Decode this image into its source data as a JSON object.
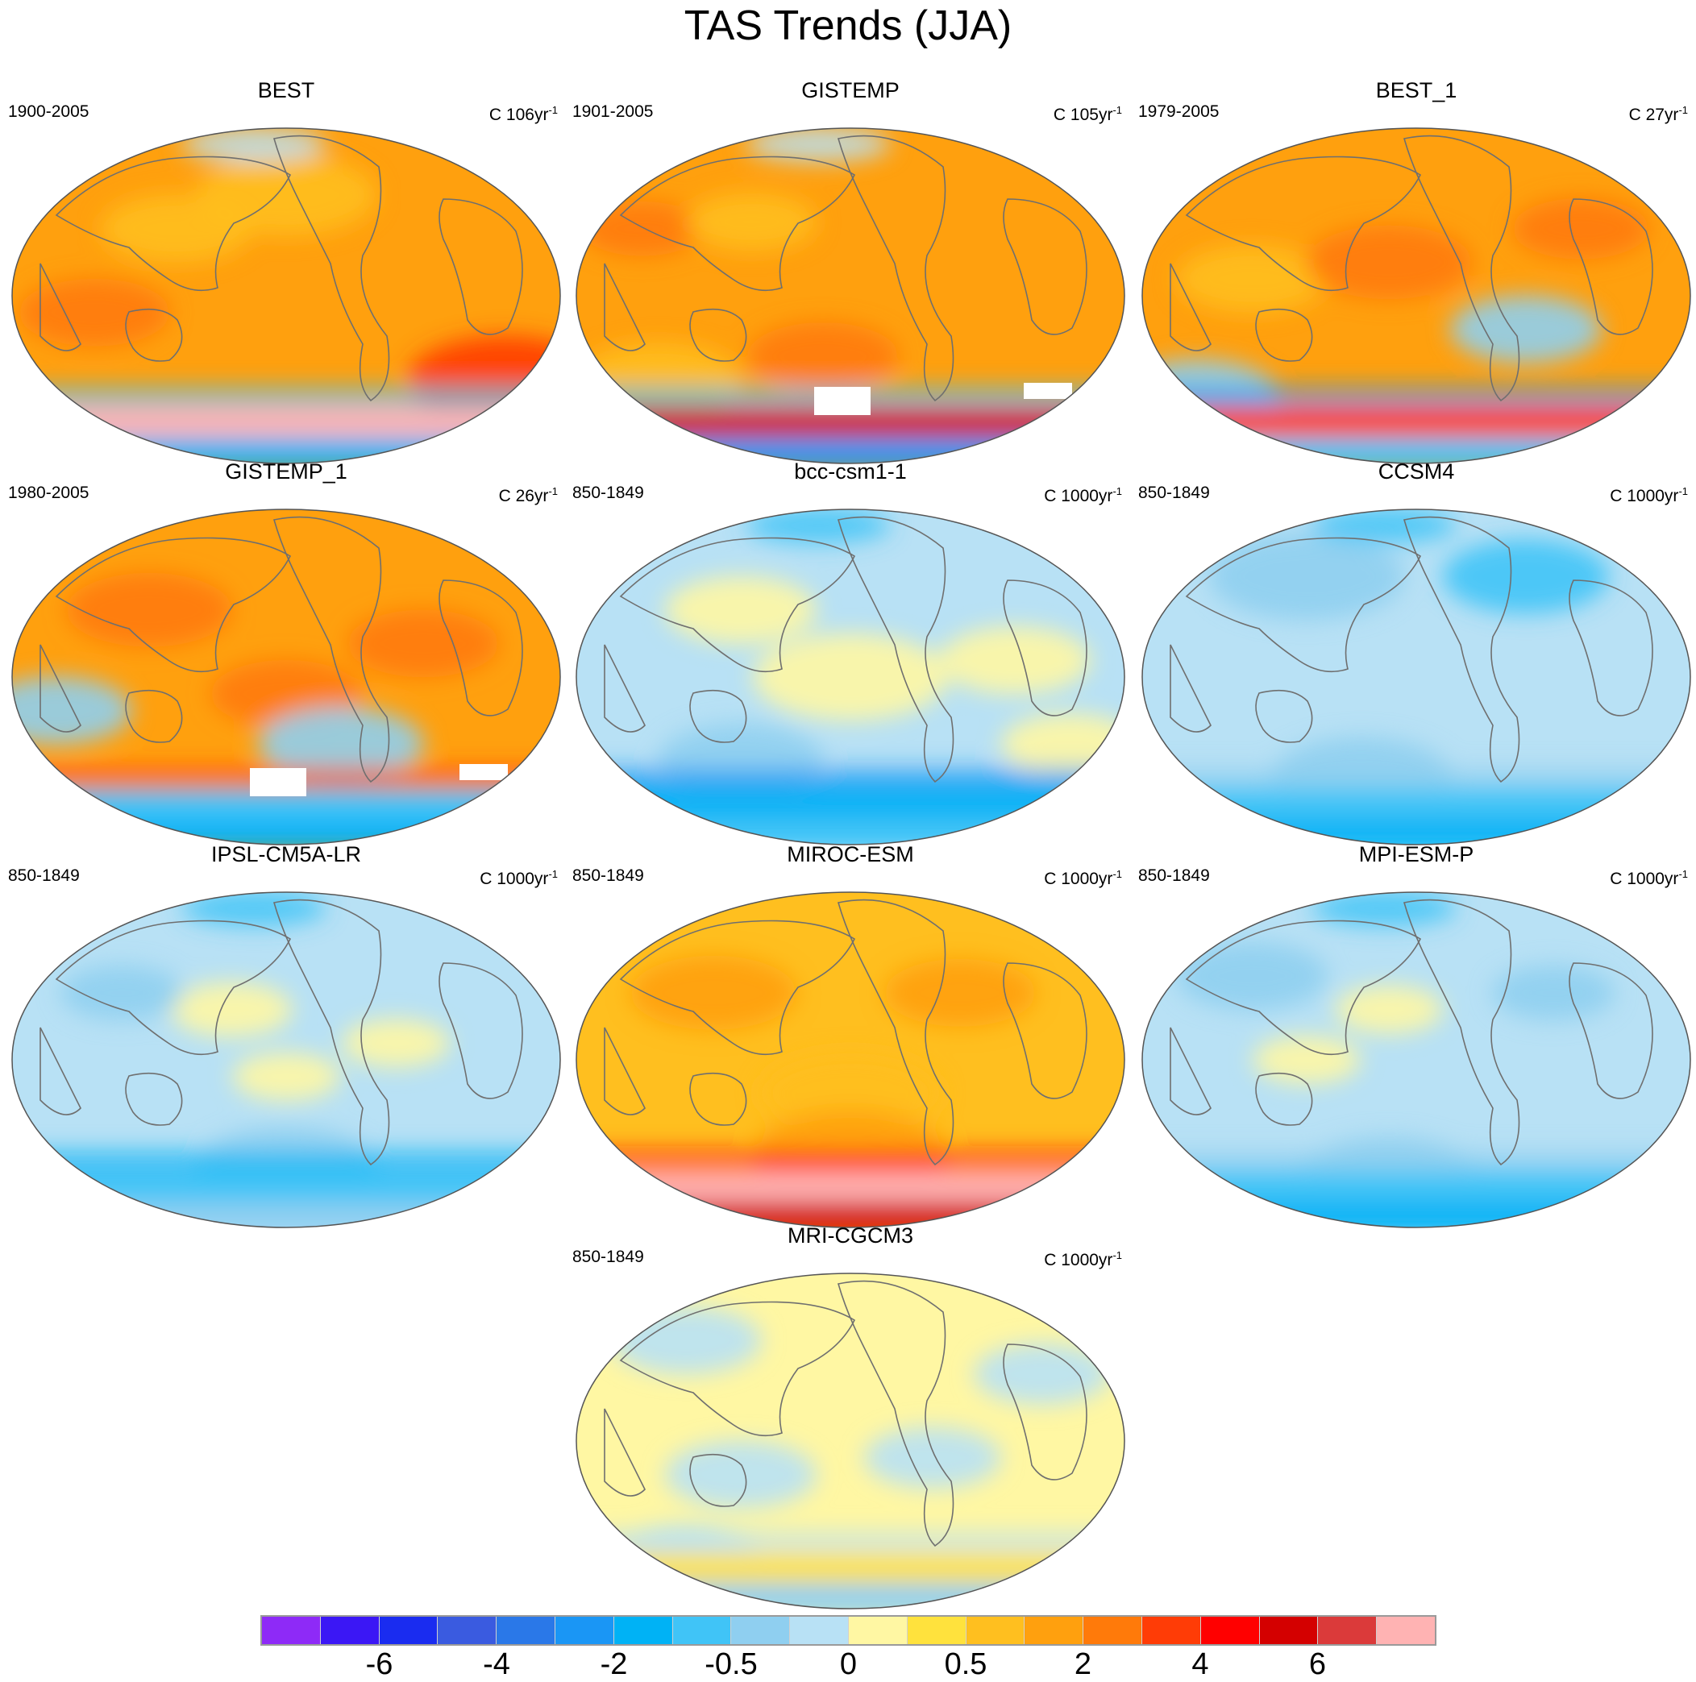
{
  "title": "TAS Trends (JJA)",
  "panels": [
    {
      "title": "BEST",
      "period": "1900-2005",
      "units_prefix": "C 106yr",
      "units_exp": "-1",
      "base": 13,
      "blobs": [
        [
          0.15,
          0.55,
          0.6,
          14
        ],
        [
          0.3,
          0.3,
          0.6,
          12
        ],
        [
          0.9,
          0.75,
          0.9,
          15
        ],
        [
          0.5,
          0.2,
          0.8,
          12
        ]
      ],
      "south_band": {
        "level": 19,
        "cold_levels": [
          6,
          7
        ],
        "white_patch": false
      },
      "north_cold": true
    },
    {
      "title": "GISTEMP",
      "period": "1901-2005",
      "units_prefix": "C 105yr",
      "units_exp": "-1",
      "base": 13,
      "blobs": [
        [
          0.12,
          0.3,
          0.4,
          14
        ],
        [
          0.32,
          0.28,
          0.45,
          12
        ],
        [
          0.45,
          0.68,
          0.6,
          14
        ],
        [
          0.15,
          0.75,
          0.7,
          12
        ]
      ],
      "south_band": {
        "level": 17,
        "cold_levels": [
          5,
          7
        ],
        "white_patch": true
      },
      "north_cold": true
    },
    {
      "title": "BEST_1",
      "period": "1979-2005",
      "units_prefix": "C 27yr",
      "units_exp": "-1",
      "base": 13,
      "blobs": [
        [
          0.2,
          0.45,
          0.6,
          12
        ],
        [
          0.45,
          0.4,
          0.7,
          14
        ],
        [
          0.1,
          0.8,
          0.7,
          8
        ],
        [
          0.7,
          0.6,
          0.6,
          8
        ],
        [
          0.8,
          0.3,
          0.5,
          14
        ]
      ],
      "south_band": {
        "level": 15,
        "cold_levels": [
          7,
          5
        ],
        "white_patch": false
      },
      "north_cold": false
    },
    {
      "title": "GISTEMP_1",
      "period": "1980-2005",
      "units_prefix": "C 26yr",
      "units_exp": "-1",
      "base": 13,
      "blobs": [
        [
          0.25,
          0.3,
          0.7,
          14
        ],
        [
          0.5,
          0.55,
          0.6,
          14
        ],
        [
          0.08,
          0.6,
          0.6,
          8
        ],
        [
          0.6,
          0.7,
          0.7,
          8
        ],
        [
          0.75,
          0.4,
          0.6,
          14
        ]
      ],
      "south_band": {
        "level": 7,
        "cold_levels": [
          6,
          15
        ],
        "white_patch": true
      },
      "north_cold": false
    },
    {
      "title": "bcc-csm1-1",
      "period": "850-1849",
      "units_prefix": "C 1000yr",
      "units_exp": "-1",
      "base": 9,
      "blobs": [
        [
          0.3,
          0.3,
          0.6,
          10
        ],
        [
          0.5,
          0.5,
          0.9,
          10
        ],
        [
          0.8,
          0.45,
          0.6,
          10
        ],
        [
          0.9,
          0.7,
          0.5,
          10
        ],
        [
          0.3,
          0.75,
          0.7,
          8
        ]
      ],
      "south_band": {
        "level": 6,
        "cold_levels": [
          7,
          5
        ],
        "white_patch": false
      },
      "north_cold": true
    },
    {
      "title": "CCSM4",
      "period": "850-1849",
      "units_prefix": "C 1000yr",
      "units_exp": "-1",
      "base": 9,
      "blobs": [
        [
          0.3,
          0.2,
          0.9,
          8
        ],
        [
          0.7,
          0.2,
          0.7,
          7
        ],
        [
          0.4,
          0.8,
          0.8,
          8
        ]
      ],
      "south_band": {
        "level": 7,
        "cold_levels": [
          6,
          8
        ],
        "white_patch": false
      },
      "north_cold": true
    },
    {
      "title": "IPSL-CM5A-LR",
      "period": "850-1849",
      "units_prefix": "C 1000yr",
      "units_exp": "-1",
      "base": 9,
      "blobs": [
        [
          0.4,
          0.35,
          0.4,
          10
        ],
        [
          0.5,
          0.55,
          0.3,
          10
        ],
        [
          0.7,
          0.45,
          0.3,
          10
        ],
        [
          0.2,
          0.3,
          0.4,
          8
        ],
        [
          0.5,
          0.82,
          0.8,
          8
        ]
      ],
      "south_band": {
        "level": 7,
        "cold_levels": [
          8,
          6
        ],
        "white_patch": false
      },
      "north_cold": true
    },
    {
      "title": "MIROC-ESM",
      "period": "850-1849",
      "units_prefix": "C 1000yr",
      "units_exp": "-1",
      "base": 12,
      "blobs": [
        [
          0.25,
          0.3,
          0.7,
          13
        ],
        [
          0.5,
          0.6,
          0.8,
          12
        ],
        [
          0.7,
          0.3,
          0.6,
          13
        ],
        [
          0.5,
          0.78,
          0.9,
          13
        ]
      ],
      "south_band": {
        "level": 19,
        "cold_levels": [
          17,
          16
        ],
        "white_patch": false
      },
      "north_cold": false
    },
    {
      "title": "MPI-ESM-P",
      "period": "850-1849",
      "units_prefix": "C 1000yr",
      "units_exp": "-1",
      "base": 9,
      "blobs": [
        [
          0.2,
          0.25,
          0.6,
          8
        ],
        [
          0.45,
          0.35,
          0.3,
          10
        ],
        [
          0.3,
          0.5,
          0.3,
          10
        ],
        [
          0.75,
          0.3,
          0.4,
          8
        ],
        [
          0.45,
          0.85,
          0.8,
          8
        ]
      ],
      "south_band": {
        "level": 7,
        "cold_levels": [
          6,
          8
        ],
        "white_patch": false
      },
      "north_cold": true
    },
    {
      "title": "MRI-CGCM3",
      "period": "850-1849",
      "units_prefix": "C 1000yr",
      "units_exp": "-1",
      "base": 10,
      "blobs": [
        [
          0.2,
          0.2,
          0.6,
          9
        ],
        [
          0.3,
          0.6,
          0.6,
          9
        ],
        [
          0.65,
          0.55,
          0.5,
          9
        ],
        [
          0.85,
          0.3,
          0.5,
          9
        ],
        [
          0.2,
          0.85,
          0.6,
          9
        ]
      ],
      "south_band": {
        "level": 11,
        "cold_levels": [
          8,
          9
        ],
        "white_patch": false
      },
      "north_cold": false
    }
  ],
  "colorbar": {
    "colors": [
      "#8e2af7",
      "#3b17f5",
      "#1a2cf0",
      "#3a5be0",
      "#2a78e8",
      "#1a96f5",
      "#00b2f5",
      "#40c4f7",
      "#8fcff0",
      "#b8e1f5",
      "#fff7a3",
      "#ffe23d",
      "#ffbf1f",
      "#ffa00e",
      "#ff7a0a",
      "#ff3c06",
      "#ff0000",
      "#d40000",
      "#db3a3a",
      "#ffb3b3"
    ],
    "labels": [
      "-6",
      "-4",
      "-2",
      "-0.5",
      "0",
      "0.5",
      "2",
      "4",
      "6"
    ],
    "label_boundaries": [
      2,
      4,
      6,
      8,
      10,
      12,
      14,
      16,
      18
    ]
  }
}
